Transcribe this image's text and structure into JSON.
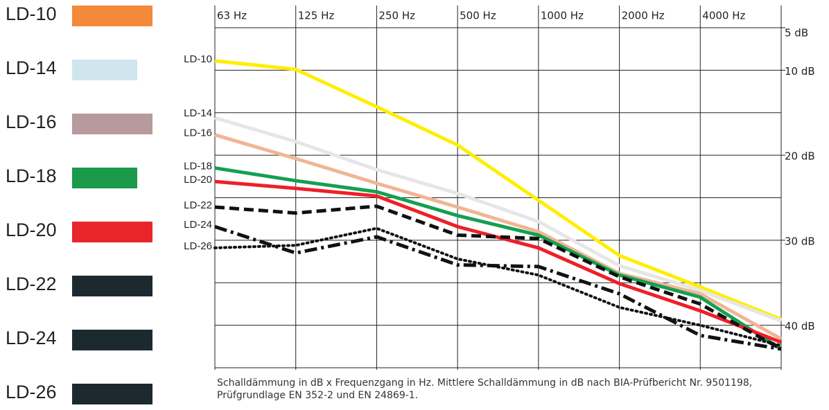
{
  "chart_data": {
    "type": "line",
    "categories": [
      "63 Hz",
      "125 Hz",
      "250 Hz",
      "500 Hz",
      "1000 Hz",
      "2000 Hz",
      "4000 Hz",
      null
    ],
    "ylim": [
      5,
      45
    ],
    "yticks": [
      {
        "value": 5,
        "label": "5 dB"
      },
      {
        "value": 10,
        "label": "10 dB"
      },
      {
        "value": 20,
        "label": "20 dB"
      },
      {
        "value": 30,
        "label": "30 dB"
      },
      {
        "value": 40,
        "label": "40 dB"
      }
    ],
    "y_minor_ticks": [
      15,
      25,
      35
    ],
    "y_inverted": true,
    "grid": true,
    "series": [
      {
        "name": "LD-10",
        "color": "#ffee00",
        "swatch_color": "#f28a3a",
        "style": "solid",
        "values": [
          8.9,
          9.9,
          14.3,
          18.8,
          25.3,
          31.8,
          35.5,
          39.3
        ]
      },
      {
        "name": "LD-14",
        "color": "#e6e6e6",
        "swatch_color": "#cfe6ef",
        "style": "solid",
        "values": [
          15.6,
          18.4,
          21.7,
          24.5,
          27.8,
          33.0,
          35.9,
          39.5
        ]
      },
      {
        "name": "LD-16",
        "color": "#f0b595",
        "swatch_color": "#b89a9c",
        "style": "solid",
        "values": [
          17.6,
          20.4,
          23.3,
          26.1,
          29.0,
          33.9,
          36.3,
          41.6
        ]
      },
      {
        "name": "LD-18",
        "color": "#14a050",
        "swatch_color": "#1a9a4a",
        "style": "solid",
        "values": [
          21.5,
          23.0,
          24.3,
          27.1,
          29.4,
          34.1,
          36.7,
          42.8
        ]
      },
      {
        "name": "LD-20",
        "color": "#ee2028",
        "swatch_color": "#e8262a",
        "style": "solid",
        "values": [
          23.1,
          23.9,
          24.8,
          28.4,
          30.9,
          35.1,
          38.3,
          42.0
        ]
      },
      {
        "name": "LD-22",
        "color": "#111111",
        "swatch_color": "#1c2a30",
        "style": "dashed",
        "values": [
          26.1,
          26.8,
          26.0,
          29.4,
          29.8,
          34.3,
          37.5,
          42.8
        ]
      },
      {
        "name": "LD-24",
        "color": "#111111",
        "swatch_color": "#1c2a30",
        "style": "dashdot",
        "values": [
          28.4,
          31.5,
          29.6,
          32.9,
          33.1,
          36.3,
          41.2,
          42.8
        ]
      },
      {
        "name": "LD-26",
        "color": "#111111",
        "swatch_color": "#1c2a30",
        "style": "dotted",
        "values": [
          30.9,
          30.6,
          28.6,
          32.2,
          34.1,
          37.9,
          40.0,
          42.4
        ]
      }
    ],
    "caption": "Schalldämmung in dB x Frequenzgang in Hz. Mittlere Schalldämmung in dB nach BIA-Prüfbericht Nr. 9501198, Prüfgrundlage EN 352-2 und EN 24869-1."
  }
}
